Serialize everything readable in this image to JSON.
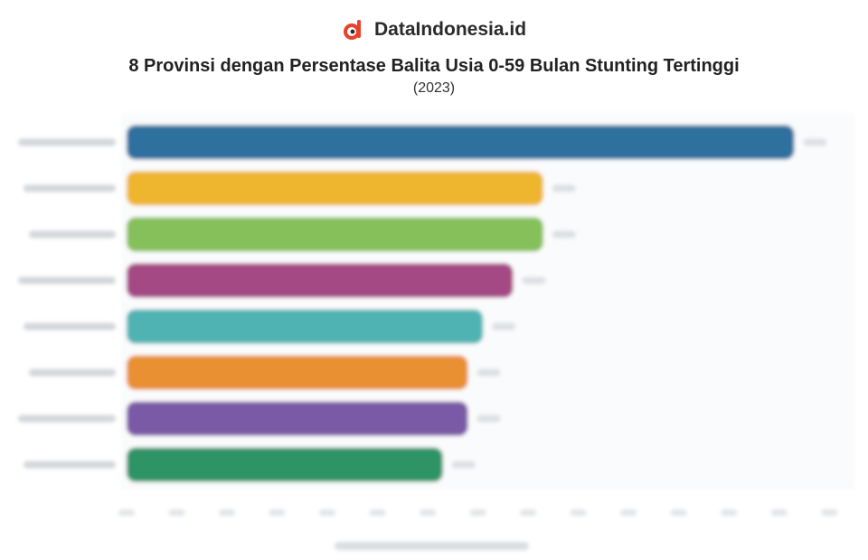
{
  "brand": {
    "name": "DataIndonesia.id",
    "logo_icon": "dataindonesia-logo-icon",
    "logo_color": "#e8412c"
  },
  "chart_data": {
    "type": "bar",
    "orientation": "horizontal",
    "title": "8 Provinsi dengan Persentase Balita Usia 0-59 Bulan Stunting Tertinggi",
    "subtitle": "(2023)",
    "categories": [
      "",
      "",
      "",
      "",
      "",
      "",
      "",
      ""
    ],
    "values": [
      13.3,
      8.3,
      8.3,
      7.7,
      7.1,
      6.8,
      6.8,
      6.3
    ],
    "colors": [
      "#2e6f9e",
      "#eeb52f",
      "#86c05a",
      "#a44a84",
      "#4fb3b3",
      "#e89030",
      "#7a5aa6",
      "#2f9466"
    ],
    "xlim": [
      0,
      14.5
    ],
    "xticks": [
      0,
      1,
      2,
      3,
      4,
      5,
      6,
      7,
      8,
      9,
      10,
      11,
      12,
      13,
      14
    ],
    "grid": false,
    "legend": "none",
    "note": "Category labels, tick labels and data labels are blurred and illegible in the original"
  }
}
